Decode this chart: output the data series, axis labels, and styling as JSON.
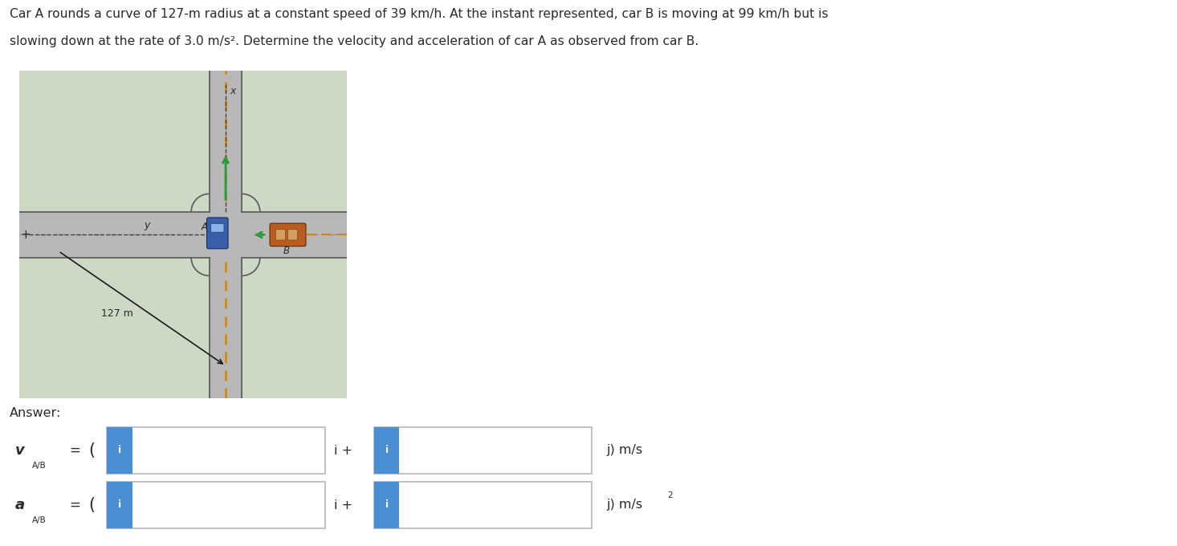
{
  "title_line1": "Car A rounds a curve of 127-m radius at a constant speed of 39 km/h. At the instant represented, car B is moving at 99 km/h but is",
  "title_line2": "slowing down at the rate of 3.0 m/s². Determine the velocity and acceleration of car A as observed from car B.",
  "answer_label": "Answer:",
  "bg_color": "#ffffff",
  "input_box_border": "#b8b8b8",
  "input_icon_color": "#4a8fd4",
  "input_icon_text": "i",
  "text_color": "#2a2a2a",
  "road_bg": "#cdd9c5",
  "road_color": "#b8b8b8",
  "road_dark": "#808080",
  "road_border": "#606060",
  "center_line_color": "#d4860a",
  "dashed_road_color": "#909090",
  "car_A_color": "#3a5faa",
  "car_B_color": "#b85c20",
  "arrow_green": "#2a9a3a",
  "arrow_dark": "#1a1a1a",
  "label_127": "127 m",
  "label_x": "x",
  "label_y": "y",
  "label_A": "A",
  "label_B": "B"
}
